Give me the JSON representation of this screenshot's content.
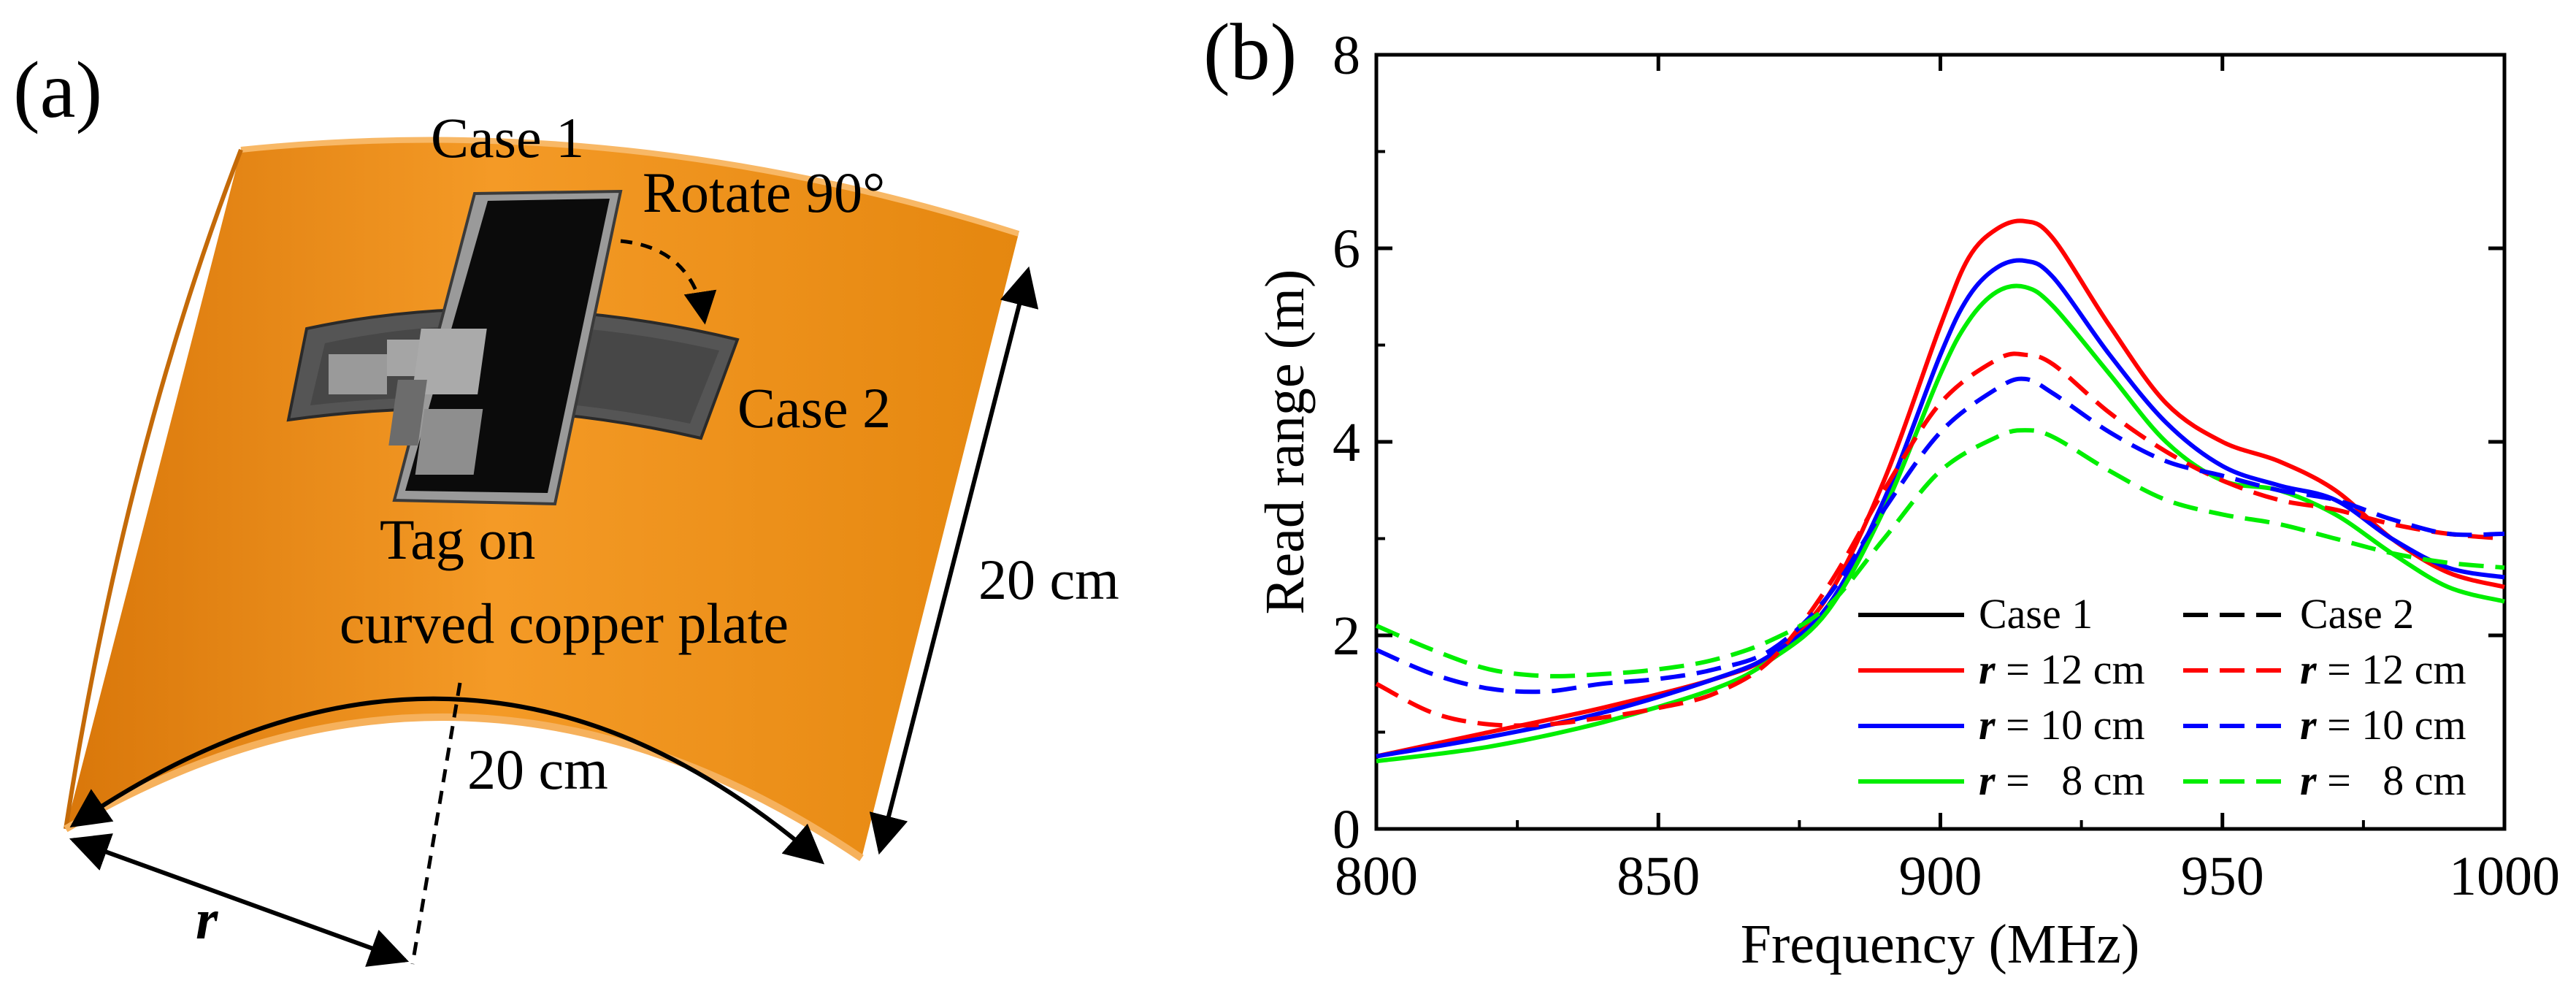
{
  "panel_a": {
    "label": "(a)",
    "case1": "Case 1",
    "case2": "Case 2",
    "rotate": "Rotate 90°",
    "tag_line1": "Tag on",
    "tag_line2": "curved copper plate",
    "height_dim": "20 cm",
    "arc_dim": "20 cm",
    "radius_symbol": "r",
    "colors": {
      "plate": "#e98a10",
      "plate_light": "#f6a53c",
      "plate_dark": "#c9700a",
      "tag_dark": "#111111",
      "tag_gray": "#6a6a6a"
    }
  },
  "chart_data": {
    "label": "(b)",
    "type": "line",
    "title": "",
    "xlabel": "Frequency (MHz)",
    "ylabel": "Read range (m)",
    "xlim": [
      800,
      1000
    ],
    "ylim": [
      0,
      8
    ],
    "xticks": [
      "800",
      "850",
      "900",
      "950",
      "1000"
    ],
    "yticks": [
      "0",
      "2",
      "4",
      "6",
      "8"
    ],
    "legend": {
      "placement": "bottom-right",
      "header_case1": "Case 1",
      "header_case2": "Case 2",
      "rows": [
        {
          "sym": "r",
          "text": " = 12 cm"
        },
        {
          "sym": "r",
          "text": " = 10 cm"
        },
        {
          "sym": "r",
          "text": " =   8 cm"
        }
      ]
    },
    "series": [
      {
        "name": "Case 1, r = 12 cm",
        "case": "Case 1",
        "color": "#ff0000",
        "dash": "solid",
        "x": [
          800,
          820,
          840,
          860,
          870,
          880,
          890,
          900,
          905,
          910,
          915,
          920,
          930,
          940,
          950,
          960,
          970,
          980,
          990,
          1000
        ],
        "y": [
          0.75,
          1.0,
          1.25,
          1.55,
          1.8,
          2.4,
          3.6,
          5.2,
          5.9,
          6.2,
          6.28,
          6.1,
          5.2,
          4.4,
          4.0,
          3.8,
          3.5,
          3.0,
          2.65,
          2.5
        ]
      },
      {
        "name": "Case 1, r = 10 cm",
        "case": "Case 1",
        "color": "#0000ff",
        "dash": "solid",
        "x": [
          800,
          820,
          840,
          860,
          870,
          880,
          890,
          900,
          905,
          910,
          915,
          920,
          930,
          940,
          950,
          960,
          970,
          980,
          990,
          1000
        ],
        "y": [
          0.75,
          0.95,
          1.2,
          1.55,
          1.8,
          2.3,
          3.4,
          4.9,
          5.5,
          5.8,
          5.87,
          5.7,
          4.9,
          4.2,
          3.75,
          3.55,
          3.4,
          3.0,
          2.7,
          2.6
        ]
      },
      {
        "name": "Case 1, r = 8 cm",
        "case": "Case 1",
        "color": "#00ee00",
        "dash": "solid",
        "x": [
          800,
          820,
          840,
          860,
          870,
          880,
          890,
          900,
          905,
          910,
          915,
          920,
          930,
          940,
          950,
          960,
          970,
          980,
          990,
          1000
        ],
        "y": [
          0.7,
          0.85,
          1.1,
          1.45,
          1.75,
          2.25,
          3.3,
          4.7,
          5.25,
          5.55,
          5.6,
          5.4,
          4.7,
          4.0,
          3.6,
          3.5,
          3.25,
          2.85,
          2.5,
          2.35
        ]
      },
      {
        "name": "Case 2, r = 12 cm",
        "case": "Case 2",
        "color": "#ff0000",
        "dash": "dashed",
        "x": [
          800,
          810,
          820,
          830,
          840,
          850,
          860,
          870,
          880,
          890,
          900,
          910,
          915,
          920,
          930,
          940,
          950,
          960,
          970,
          980,
          990,
          1000
        ],
        "y": [
          1.5,
          1.2,
          1.08,
          1.08,
          1.15,
          1.25,
          1.4,
          1.75,
          2.5,
          3.5,
          4.4,
          4.85,
          4.9,
          4.8,
          4.3,
          3.9,
          3.6,
          3.4,
          3.3,
          3.15,
          3.05,
          3.0
        ]
      },
      {
        "name": "Case 2, r = 10 cm",
        "case": "Case 2",
        "color": "#0000ff",
        "dash": "dashed",
        "x": [
          800,
          810,
          820,
          830,
          840,
          850,
          860,
          870,
          880,
          890,
          900,
          910,
          915,
          920,
          930,
          940,
          950,
          960,
          970,
          980,
          990,
          1000
        ],
        "y": [
          1.85,
          1.6,
          1.45,
          1.42,
          1.5,
          1.55,
          1.65,
          1.85,
          2.4,
          3.3,
          4.1,
          4.55,
          4.65,
          4.5,
          4.1,
          3.8,
          3.65,
          3.5,
          3.4,
          3.2,
          3.05,
          3.05
        ]
      },
      {
        "name": "Case 2, r = 8 cm",
        "case": "Case 2",
        "color": "#00ee00",
        "dash": "dashed",
        "x": [
          800,
          810,
          820,
          830,
          840,
          850,
          860,
          870,
          880,
          890,
          900,
          910,
          915,
          920,
          930,
          940,
          950,
          960,
          970,
          980,
          990,
          1000
        ],
        "y": [
          2.1,
          1.85,
          1.65,
          1.58,
          1.6,
          1.65,
          1.75,
          1.95,
          2.3,
          3.0,
          3.7,
          4.05,
          4.12,
          4.05,
          3.7,
          3.4,
          3.25,
          3.15,
          3.0,
          2.85,
          2.75,
          2.7
        ]
      }
    ]
  }
}
